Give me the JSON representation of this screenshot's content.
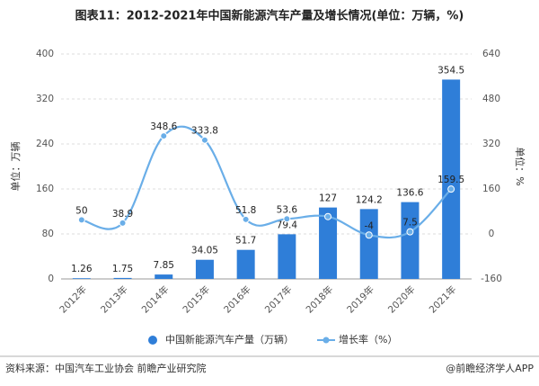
{
  "chart_data": {
    "type": "bar-line",
    "title": "图表11：2012-2021年中国新能源汽车产量及增长情况(单位：万辆，%)",
    "y_label": "单位：万辆",
    "y2_label": "单位：%",
    "categories": [
      "2012年",
      "2013年",
      "2014年",
      "2015年",
      "2016年",
      "2017年",
      "2018年",
      "2019年",
      "2020年",
      "2021年"
    ],
    "series": [
      {
        "name": "中国新能源汽车产量（万辆）",
        "type": "bar",
        "color": "#2f7ed8",
        "axis": "y",
        "values": [
          1.26,
          1.75,
          7.85,
          34.05,
          51.7,
          79.4,
          127,
          124.2,
          136.6,
          354.5
        ]
      },
      {
        "name": "增长率（%）",
        "type": "line",
        "color": "#6aaee8",
        "axis": "y2",
        "values": [
          50,
          38.9,
          348.6,
          333.8,
          51.8,
          53.6,
          61.7,
          -4,
          7.5,
          159.5
        ],
        "value_labels": [
          "50",
          "38.9",
          "348.6",
          "333.8",
          "51.8",
          "53.6",
          null,
          "-4",
          "7.5",
          "159.5"
        ]
      }
    ],
    "ylim": [
      0,
      400
    ],
    "yticks": [
      0,
      80,
      160,
      240,
      320,
      400
    ],
    "y2lim": [
      -160,
      640
    ],
    "y2ticks": [
      -160,
      0,
      160,
      320,
      480,
      640
    ],
    "grid": true,
    "source": "资料来源：中国汽车工业协会 前瞻产业研究院",
    "credit": "@前瞻经济学人APP"
  }
}
